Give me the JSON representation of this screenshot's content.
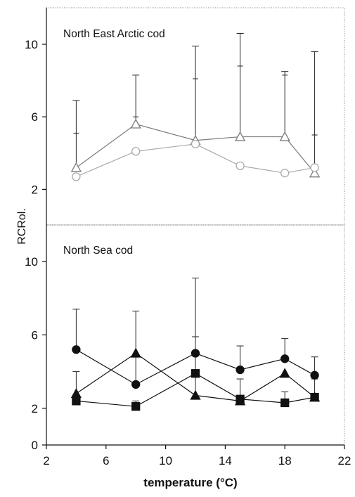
{
  "chart_data": [
    {
      "type": "line",
      "title": "North East Arctic cod",
      "ylabel": "RCRol.",
      "xlabel": "temperature (°C)",
      "xlim": [
        2,
        22
      ],
      "ylim": [
        0,
        12
      ],
      "yticks": [
        2,
        6,
        10
      ],
      "grid": false,
      "series": [
        {
          "marker": "triangle",
          "color": "#7a7a7a",
          "x": [
            4,
            8,
            12,
            15,
            18,
            20
          ],
          "y": [
            3.2,
            5.6,
            4.7,
            4.9,
            4.9,
            2.9
          ],
          "upper": [
            6.9,
            8.3,
            9.9,
            10.6,
            8.5,
            9.6
          ],
          "upper_mid": [
            5.1,
            6.0,
            8.1,
            8.8,
            8.3,
            5.0
          ]
        },
        {
          "marker": "circle",
          "color": "#aaaaaa",
          "x": [
            4,
            8,
            12,
            15,
            18,
            20
          ],
          "y": [
            2.7,
            4.1,
            4.5,
            3.3,
            2.9,
            3.2
          ],
          "upper": [],
          "upper_mid": []
        }
      ]
    },
    {
      "type": "line",
      "title": "North Sea cod",
      "ylabel": "RCRol.",
      "xlabel": "temperature (°C)",
      "xlim": [
        2,
        22
      ],
      "ylim": [
        0,
        12
      ],
      "yticks": [
        0,
        2,
        6,
        10
      ],
      "xticks": [
        2,
        6,
        10,
        14,
        18,
        22
      ],
      "grid": false,
      "series": [
        {
          "marker": "circle",
          "color": "#111111",
          "x": [
            4,
            8,
            12,
            15,
            18,
            20
          ],
          "y": [
            5.2,
            3.3,
            5.0,
            4.1,
            4.7,
            3.8
          ],
          "upper": [
            7.4,
            7.3,
            9.1,
            5.4,
            5.8,
            4.8
          ]
        },
        {
          "marker": "triangle",
          "color": "#111111",
          "x": [
            4,
            8,
            12,
            15,
            18,
            20
          ],
          "y": [
            2.8,
            5.0,
            2.7,
            2.4,
            3.9,
            2.6
          ],
          "upper": [
            4.0,
            4.8,
            5.9,
            3.6,
            0,
            3.6
          ]
        },
        {
          "marker": "square",
          "color": "#111111",
          "x": [
            4,
            8,
            12,
            15,
            18,
            20
          ],
          "y": [
            2.4,
            2.1,
            3.9,
            2.5,
            2.3,
            2.6
          ],
          "upper": [
            0,
            2.4,
            0,
            0,
            2.9,
            0
          ]
        }
      ]
    }
  ]
}
